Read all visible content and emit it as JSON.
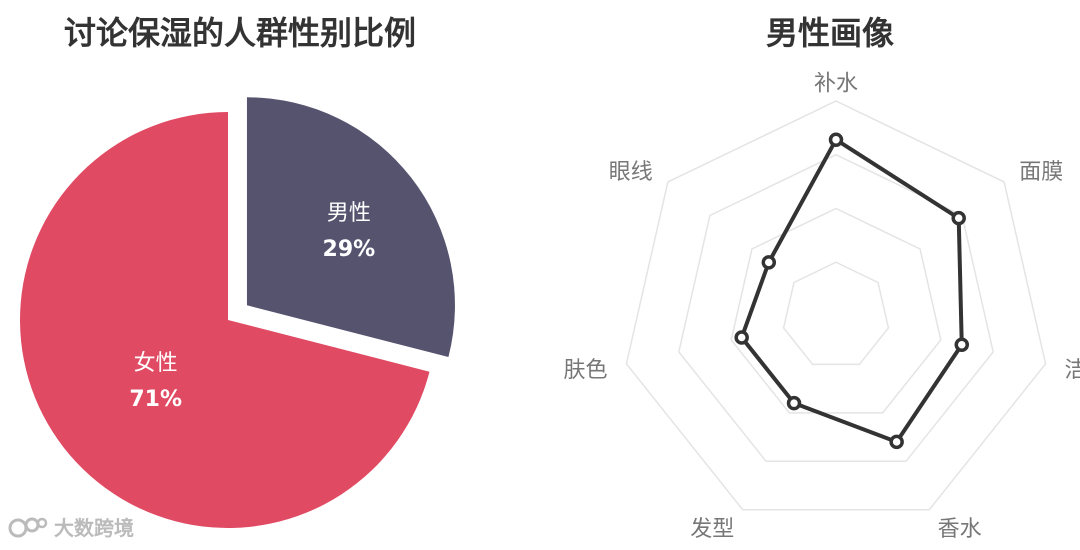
{
  "chart_data": [
    {
      "type": "pie",
      "title": "讨论保湿的人群性别比例",
      "slices": [
        {
          "label": "男性",
          "value": 29,
          "value_label": "29%",
          "color": "#56536f",
          "exploded": true
        },
        {
          "label": "女性",
          "value": 71,
          "value_label": "71%",
          "color": "#e04a63",
          "exploded": false
        }
      ]
    },
    {
      "type": "radar",
      "title": "男性画像",
      "axes": [
        "补水",
        "面膜",
        "洁面",
        "香水",
        "发型",
        "肤色",
        "眼线"
      ],
      "series": [
        {
          "values": [
            0.82,
            0.73,
            0.6,
            0.65,
            0.45,
            0.45,
            0.4
          ],
          "color": "#333333"
        }
      ],
      "rings": 4,
      "range": [
        0,
        1
      ]
    }
  ],
  "watermark": {
    "text": "大数跨境"
  }
}
